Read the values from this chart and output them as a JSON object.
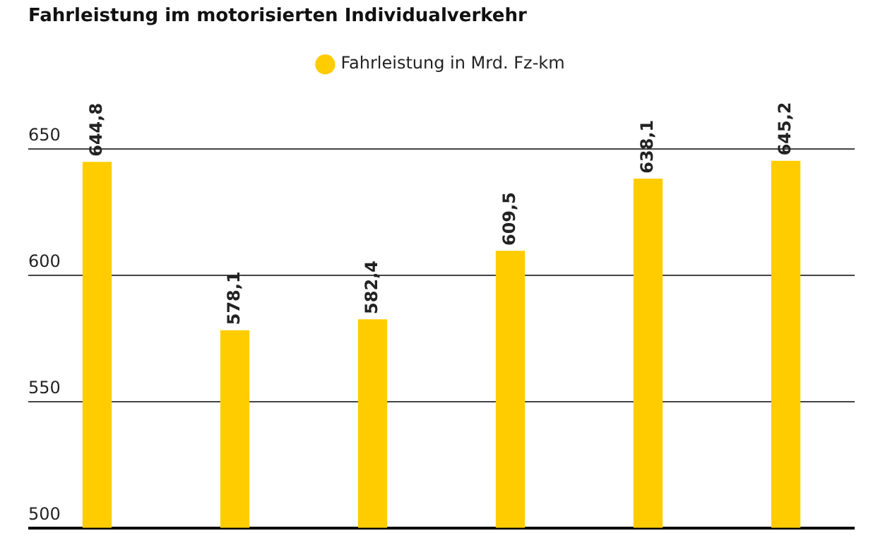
{
  "chart_data": {
    "type": "bar",
    "title": "Fahrleistung im motorisierten Individualverkehr",
    "categories": [
      null,
      null,
      null,
      null,
      null,
      null
    ],
    "series": [
      {
        "name": "Fahrleistung in Mrd. Fz-km",
        "color": "#ffcc00",
        "values": [
          644.8,
          578.1,
          582.4,
          609.5,
          638.1,
          645.2
        ],
        "value_labels": [
          "644,8",
          "578,1",
          "582,4",
          "609,5",
          "638,1",
          "645,2"
        ]
      }
    ],
    "ylim": [
      500,
      650
    ],
    "yticks": [
      500,
      550,
      600,
      650
    ],
    "grid": "y",
    "legend": "top",
    "tick_labels": "y"
  }
}
